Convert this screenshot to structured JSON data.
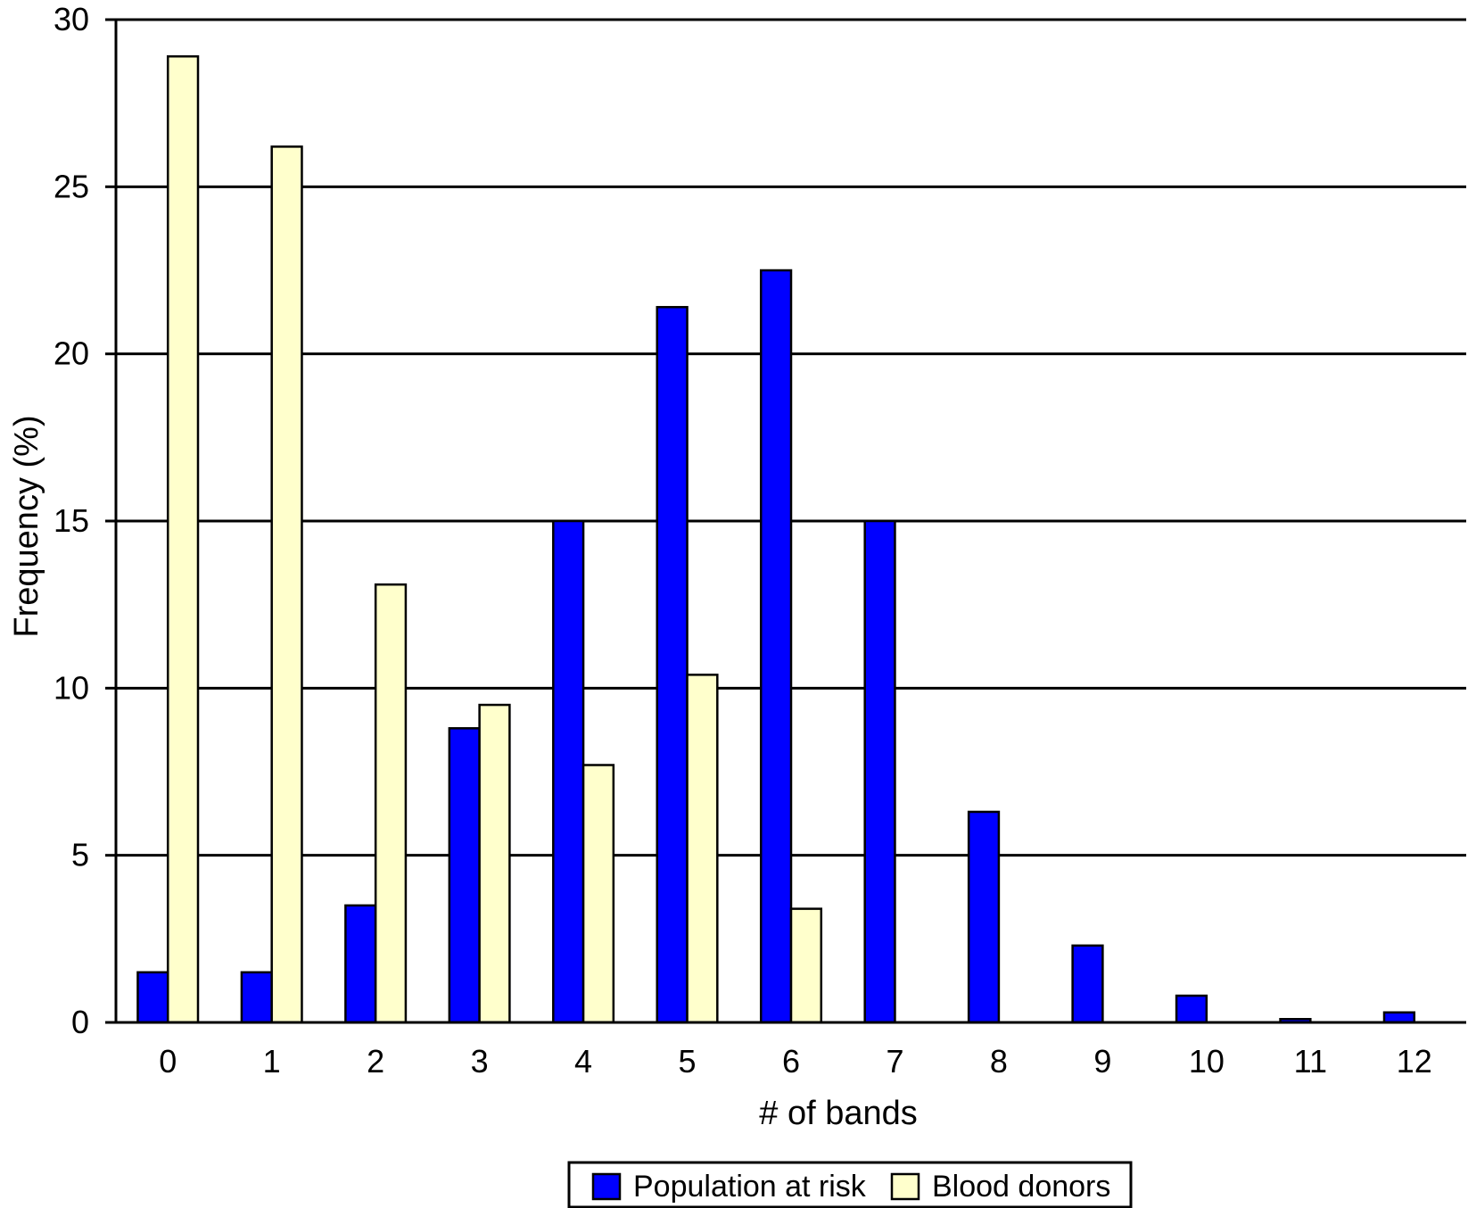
{
  "chart_data": {
    "type": "bar",
    "xlabel": "# of bands",
    "ylabel": "Frequency (%)",
    "ylim": [
      0,
      30
    ],
    "yticks": [
      0,
      5,
      10,
      15,
      20,
      25,
      30
    ],
    "grid": true,
    "legend_position": "bottom-center",
    "categories": [
      "0",
      "1",
      "2",
      "3",
      "4",
      "5",
      "6",
      "7",
      "8",
      "9",
      "10",
      "11",
      "12"
    ],
    "series": [
      {
        "name": "Population at risk",
        "color": "#0000ff",
        "values": [
          1.5,
          1.5,
          3.5,
          8.8,
          15.0,
          21.4,
          22.5,
          15.0,
          6.3,
          2.3,
          0.8,
          0.1,
          0.3
        ]
      },
      {
        "name": "Blood donors",
        "color": "#ffffcc",
        "values": [
          28.9,
          26.2,
          13.1,
          9.5,
          7.7,
          10.4,
          3.4,
          0,
          0,
          0,
          0,
          0,
          0
        ]
      }
    ]
  }
}
